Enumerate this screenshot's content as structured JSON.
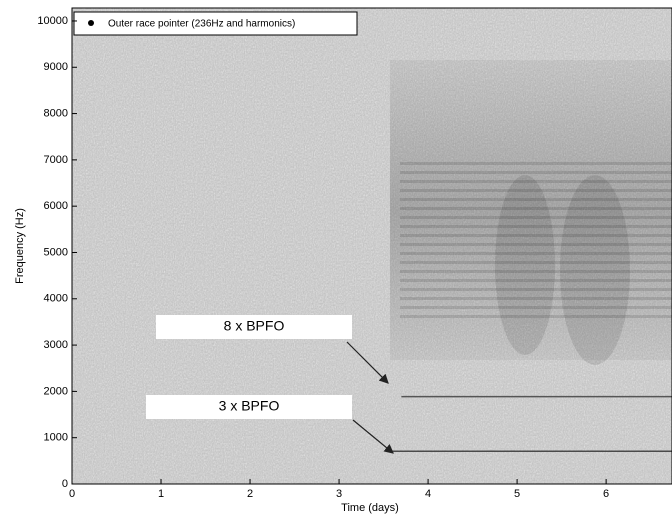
{
  "chart_data": {
    "type": "spectrogram",
    "xlabel": "Time (days)",
    "ylabel": "Frequency (Hz)",
    "xlim": [
      0,
      6.74
    ],
    "ylim": [
      0,
      10280
    ],
    "xticks": [
      0,
      1,
      2,
      3,
      4,
      5,
      6
    ],
    "yticks": [
      0,
      1000,
      2000,
      3000,
      4000,
      5000,
      6000,
      7000,
      8000,
      9000,
      10000
    ],
    "legend": "Outer race pointer (236Hz and harmonics)",
    "legend_position": "upper left",
    "harmonics": [
      {
        "frequency": 1888,
        "start": 3.7,
        "color": "#555555"
      },
      {
        "frequency": 708,
        "start": 3.6,
        "color": "#4a4a4a"
      }
    ],
    "annotations": [
      "8 x BPFO",
      "3 x BPFO"
    ]
  }
}
